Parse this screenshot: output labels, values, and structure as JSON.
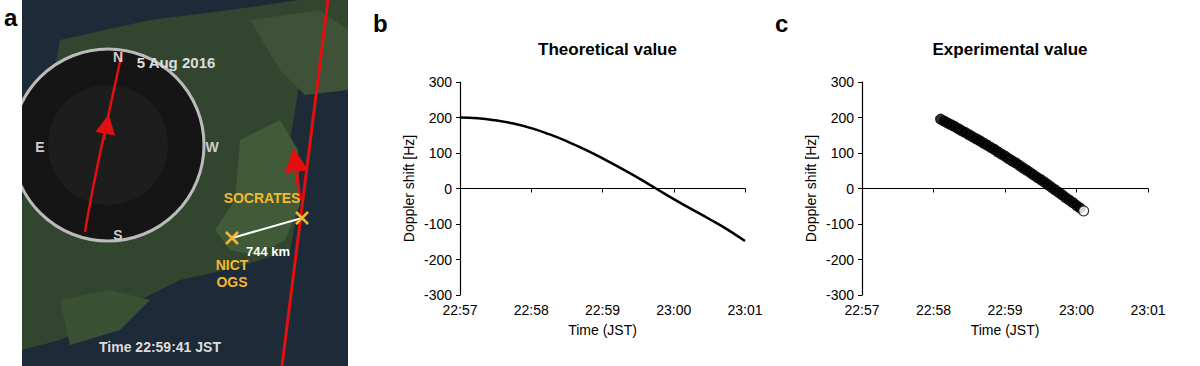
{
  "map": {
    "panel": "a",
    "date": "5 Aug 2016",
    "compass": [
      "N",
      "E",
      "W",
      "S"
    ],
    "sites": {
      "satellite": "SOCRATES",
      "station": [
        "NICT",
        "OGS"
      ]
    },
    "distance": "744 km",
    "time": "Time 22:59:41 JST"
  },
  "chart_data": [
    {
      "panel": "b",
      "type": "line",
      "title": "Theoretical value",
      "xlabel": "Time (JST)",
      "ylabel": "Doppler shift [Hz]",
      "x": [
        1377,
        1377.25,
        1377.5,
        1377.75,
        1378,
        1378.25,
        1378.5,
        1378.75,
        1379,
        1379.25,
        1379.5,
        1379.75,
        1380,
        1380.25,
        1380.5,
        1380.75,
        1381
      ],
      "values": [
        200,
        198,
        192,
        183,
        170,
        153,
        133,
        110,
        85,
        58,
        30,
        0,
        -30,
        -58,
        -86,
        -115,
        -148
      ],
      "color": "#000000",
      "xlim": [
        1377,
        1381
      ],
      "xticks": [
        {
          "value": 1377,
          "label": "22:57"
        },
        {
          "value": 1378,
          "label": "22:58"
        },
        {
          "value": 1379,
          "label": "22:59"
        },
        {
          "value": 1380,
          "label": "23:00"
        },
        {
          "value": 1381,
          "label": "23:01"
        }
      ],
      "ylim": [
        -300,
        300
      ],
      "yticks": [
        -300,
        -200,
        -100,
        0,
        100,
        200,
        300
      ],
      "grid": false
    },
    {
      "panel": "c",
      "type": "scatter",
      "title": "Experimental value",
      "xlabel": "Time (JST)",
      "ylabel": "Doppler shift [Hz]",
      "x": [
        1378.1,
        1378.15,
        1378.2,
        1378.25,
        1378.3,
        1378.35,
        1378.4,
        1378.45,
        1378.5,
        1378.55,
        1378.6,
        1378.65,
        1378.7,
        1378.75,
        1378.8,
        1378.85,
        1378.9,
        1378.95,
        1379,
        1379.05,
        1379.1,
        1379.15,
        1379.2,
        1379.25,
        1379.3,
        1379.35,
        1379.4,
        1379.45,
        1379.5,
        1379.55,
        1379.6,
        1379.65,
        1379.7,
        1379.75,
        1379.8,
        1379.85,
        1379.9,
        1379.95,
        1380,
        1380.05,
        1380.1
      ],
      "values": [
        195,
        190,
        184,
        179,
        174,
        168,
        162,
        157,
        151,
        145,
        140,
        134,
        128,
        122,
        116,
        110,
        103,
        97,
        91,
        84,
        78,
        72,
        65,
        58,
        52,
        45,
        38,
        31,
        25,
        18,
        11,
        3,
        -4,
        -11,
        -18,
        -26,
        -33,
        -40,
        -48,
        -55,
        -63
      ],
      "color": "#000000",
      "marker": "circle",
      "colors": [
        "#000000",
        "#000000",
        "#000000",
        "#000000",
        "#000000",
        "#000000",
        "#000000",
        "#000000",
        "#000000",
        "#000000",
        "#000000",
        "#000000",
        "#000000",
        "#000000",
        "#000000",
        "#000000",
        "#000000",
        "#000000",
        "#000000",
        "#000000",
        "#000000",
        "#000000",
        "#000000",
        "#000000",
        "#000000",
        "#000000",
        "#000000",
        "#000000",
        "#000000",
        "#000000",
        "#000000",
        "#000000",
        "#000000",
        "#000000",
        "#000000",
        "#000000",
        "#000000",
        "#000000",
        "#000000",
        "#000000",
        "#ffffff"
      ],
      "xlim": [
        1377,
        1381
      ],
      "xticks": [
        {
          "value": 1377,
          "label": "22:57"
        },
        {
          "value": 1378,
          "label": "22:58"
        },
        {
          "value": 1379,
          "label": "22:59"
        },
        {
          "value": 1380,
          "label": "23:00"
        },
        {
          "value": 1381,
          "label": "23:01"
        }
      ],
      "ylim": [
        -300,
        300
      ],
      "yticks": [
        -300,
        -200,
        -100,
        0,
        100,
        200,
        300
      ],
      "grid": false
    }
  ]
}
